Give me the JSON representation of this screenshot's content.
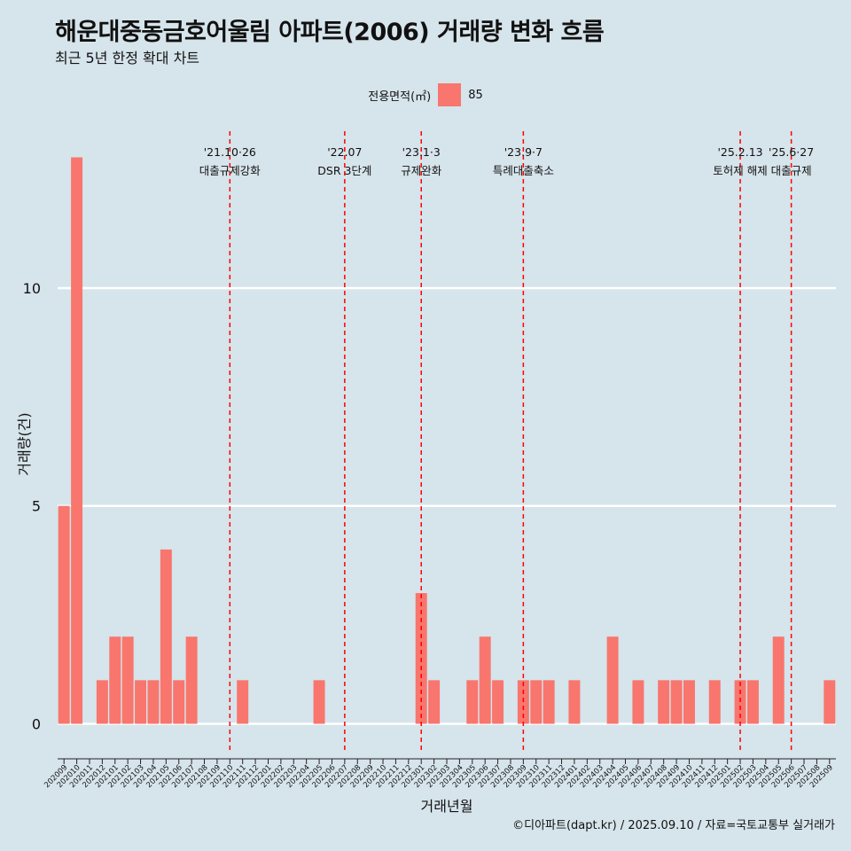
{
  "title": "해운대중동금호어울림 아파트(2006) 거래량 변화 흐름",
  "subtitle": "최근 5년 한정 확대 차트",
  "legend": {
    "title": "전용면적(㎡)",
    "item": "85",
    "color": "#f8766d"
  },
  "caption": "©디아파트(dapt.kr) / 2025.09.10 / 자료=국토교통부 실거래가",
  "chart_data": {
    "type": "bar",
    "xlabel": "거래년월",
    "ylabel": "거래량(건)",
    "ylim": [
      -0.6,
      13.6
    ],
    "yticks": [
      0,
      5,
      10
    ],
    "categories": [
      "202009",
      "202010",
      "202011",
      "202012",
      "202101",
      "202102",
      "202103",
      "202104",
      "202105",
      "202106",
      "202107",
      "202108",
      "202109",
      "202110",
      "202111",
      "202112",
      "202201",
      "202202",
      "202203",
      "202204",
      "202205",
      "202206",
      "202207",
      "202208",
      "202209",
      "202210",
      "202211",
      "202212",
      "202301",
      "202302",
      "202303",
      "202304",
      "202305",
      "202306",
      "202307",
      "202308",
      "202309",
      "202310",
      "202311",
      "202312",
      "202401",
      "202402",
      "202403",
      "202404",
      "202405",
      "202406",
      "202407",
      "202408",
      "202409",
      "202410",
      "202411",
      "202412",
      "202501",
      "202502",
      "202503",
      "202504",
      "202505",
      "202506",
      "202507",
      "202508",
      "202509"
    ],
    "series": [
      {
        "name": "85",
        "color": "#f8766d",
        "values": [
          5,
          13,
          0,
          1,
          2,
          2,
          1,
          1,
          4,
          1,
          2,
          0,
          0,
          0,
          1,
          0,
          0,
          0,
          0,
          0,
          1,
          0,
          0,
          0,
          0,
          0,
          0,
          0,
          3,
          1,
          0,
          0,
          1,
          2,
          1,
          0,
          1,
          1,
          1,
          0,
          1,
          0,
          0,
          2,
          0,
          1,
          0,
          1,
          1,
          1,
          0,
          1,
          0,
          1,
          1,
          0,
          2,
          0,
          0,
          0,
          1
        ]
      }
    ],
    "events": [
      {
        "line1": "'21.10·26",
        "line2": "대출규제강화",
        "at": "202110"
      },
      {
        "line1": "'22.07",
        "line2": "DSR 3단계",
        "at": "202207"
      },
      {
        "line1": "'23.1·3",
        "line2": "규제완화",
        "at": "202301"
      },
      {
        "line1": "'23.9·7",
        "line2": "특례대출축소",
        "at": "202309"
      },
      {
        "line1": "'25.2.13",
        "line2": "토허제 해제",
        "at": "202502"
      },
      {
        "line1": "'25.6·27",
        "line2": "대출규제",
        "at": "202506"
      }
    ],
    "grid": true,
    "legend_position": "top"
  }
}
